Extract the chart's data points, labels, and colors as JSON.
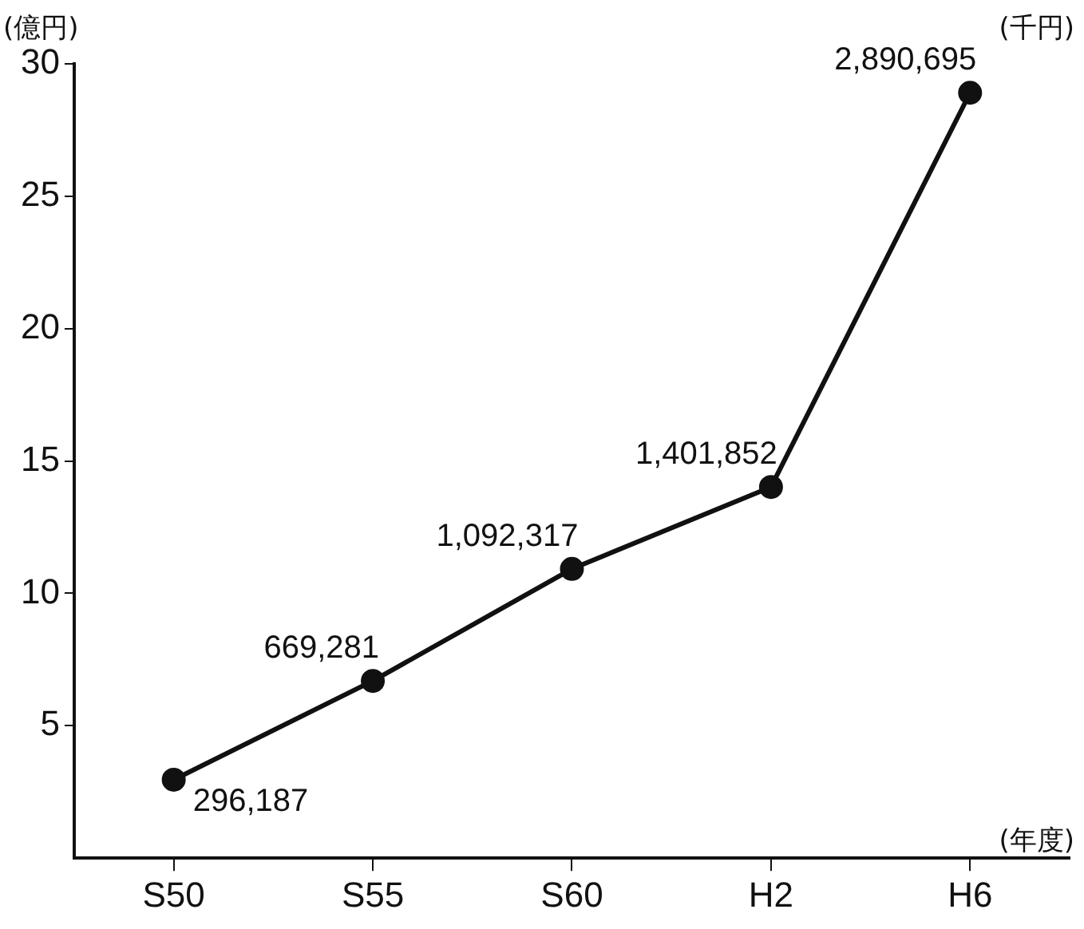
{
  "chart_data": {
    "type": "line",
    "ylabel": "(億円)",
    "xlabel": "(年度)",
    "annotations": [
      "(千円)"
    ],
    "categories": [
      "S50",
      "S55",
      "S60",
      "H2",
      "H6"
    ],
    "series": [
      {
        "color": "#111111",
        "values": [
          2.96187,
          6.69281,
          10.92317,
          14.01852,
          28.90695
        ]
      }
    ],
    "value_labels": [
      "296,187",
      "669,281",
      "1,092,317",
      "1,401,852",
      "2,890,695"
    ],
    "ylim": [
      0,
      30
    ],
    "yticks": [
      5,
      10,
      15,
      20,
      25,
      30
    ],
    "grid": false,
    "legend": false,
    "marker": "circle",
    "line_style": "solid"
  }
}
